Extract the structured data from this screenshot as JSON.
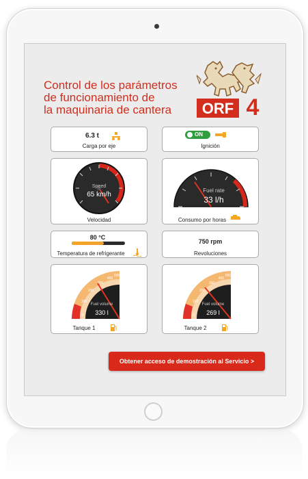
{
  "header": {
    "title_lines": [
      "Control de los parámetros",
      "de funcionamiento de",
      "la maquinaria de cantera"
    ],
    "logo_text": "ORF",
    "logo_number": "4"
  },
  "cards": {
    "load": {
      "value": "6.3 t",
      "label": "Carga por eje"
    },
    "ignition": {
      "state": "ON",
      "label": "Ignición"
    },
    "speed": {
      "gauge_title": "Speed",
      "gauge_value": "65 km/h",
      "label": "Velocidad"
    },
    "fuel_rate": {
      "gauge_title": "Fuel rate",
      "gauge_value": "33 l/h",
      "label": "Consumo por horas"
    },
    "coolant": {
      "value": "80 °C",
      "label": "Temperatura de refrigerante",
      "level": 0.6
    },
    "rpm": {
      "value": "750 rpm",
      "label": "Revoluciones"
    },
    "tank1": {
      "gauge_title": "Fuel volume",
      "gauge_value": "330 l",
      "label": "Tanque 1"
    },
    "tank2": {
      "gauge_title": "Fuel volume",
      "gauge_value": "269 l",
      "label": "Tanque 2"
    }
  },
  "tank_scale": [
    "0",
    "100",
    "200",
    "300",
    "400",
    "500"
  ],
  "cta": {
    "label": "Obtener acceso de demostración al Servicio >"
  },
  "colors": {
    "accent": "#d22d1d",
    "ok_green": "#2e9e3e",
    "icon_orange": "#f5a623"
  }
}
